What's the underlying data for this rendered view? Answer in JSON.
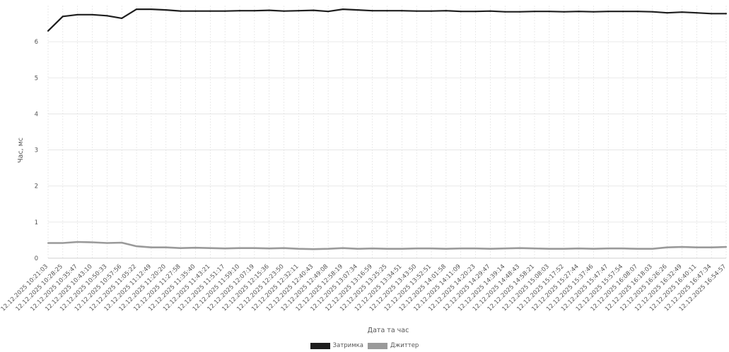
{
  "chart_data": {
    "type": "line",
    "xlabel": "Дата та час",
    "ylabel": "Час, мс",
    "ylim": [
      0,
      7
    ],
    "yticks": [
      0,
      1,
      2,
      3,
      4,
      5,
      6
    ],
    "grid": true,
    "legend_position": "bottom-center",
    "x": [
      "12.12.2025 10:21:03",
      "12.12.2025 10:28:25",
      "12.12.2025 10:35:47",
      "12.12.2025 10:43:10",
      "12.12.2025 10:50:33",
      "12.12.2025 10:57:56",
      "12.12.2025 11:05:22",
      "12.12.2025 11:12:49",
      "12.12.2025 11:20:20",
      "12.12.2025 11:27:58",
      "12.12.2025 11:35:40",
      "12.12.2025 11:43:21",
      "12.12.2025 11:51:17",
      "12.12.2025 11:59:10",
      "12.12.2025 12:07:19",
      "12.12.2025 12:15:36",
      "12.12.2025 12:23:50",
      "12.12.2025 12:32:11",
      "12.12.2025 12:40:43",
      "12.12.2025 12:49:08",
      "12.12.2025 12:58:19",
      "12.12.2025 13:07:34",
      "12.12.2025 13:16:59",
      "12.12.2025 13:25:25",
      "12.12.2025 13:34:51",
      "12.12.2025 13:43:50",
      "12.12.2025 13:52:51",
      "12.12.2025 14:01:58",
      "12.12.2025 14:11:09",
      "12.12.2025 14:20:23",
      "12.12.2025 14:29:47",
      "12.12.2025 14:39:14",
      "12.12.2025 14:48:43",
      "12.12.2025 14:58:21",
      "12.12.2025 15:08:03",
      "12.12.2025 15:17:52",
      "12.12.2025 15:27:44",
      "12.12.2025 15:37:46",
      "12.12.2025 15:47:47",
      "12.12.2025 15:57:54",
      "12.12.2025 16:08:07",
      "12.12.2025 16:18:03",
      "12.12.2025 16:26:26",
      "12.12.2025 16:32:49",
      "12.12.2025 16:40:11",
      "12.12.2025 16:47:34",
      "12.12.2025 16:54:57"
    ],
    "series": [
      {
        "name": "Затримка",
        "color": "#1e1e1e",
        "values": [
          6.3,
          6.7,
          6.75,
          6.75,
          6.72,
          6.65,
          6.9,
          6.9,
          6.88,
          6.85,
          6.85,
          6.85,
          6.85,
          6.86,
          6.86,
          6.87,
          6.85,
          6.86,
          6.87,
          6.84,
          6.9,
          6.88,
          6.86,
          6.86,
          6.86,
          6.85,
          6.85,
          6.86,
          6.84,
          6.84,
          6.85,
          6.83,
          6.83,
          6.84,
          6.84,
          6.83,
          6.84,
          6.83,
          6.84,
          6.84,
          6.84,
          6.83,
          6.8,
          6.82,
          6.8,
          6.78,
          6.78
        ]
      },
      {
        "name": "Джиттер",
        "color": "#9a9a9a",
        "values": [
          0.42,
          0.42,
          0.45,
          0.44,
          0.42,
          0.43,
          0.33,
          0.3,
          0.3,
          0.28,
          0.29,
          0.28,
          0.27,
          0.28,
          0.28,
          0.27,
          0.28,
          0.26,
          0.25,
          0.26,
          0.28,
          0.26,
          0.27,
          0.26,
          0.26,
          0.27,
          0.27,
          0.26,
          0.27,
          0.27,
          0.26,
          0.27,
          0.28,
          0.27,
          0.26,
          0.26,
          0.27,
          0.26,
          0.27,
          0.27,
          0.26,
          0.26,
          0.3,
          0.31,
          0.3,
          0.3,
          0.31
        ]
      }
    ]
  }
}
